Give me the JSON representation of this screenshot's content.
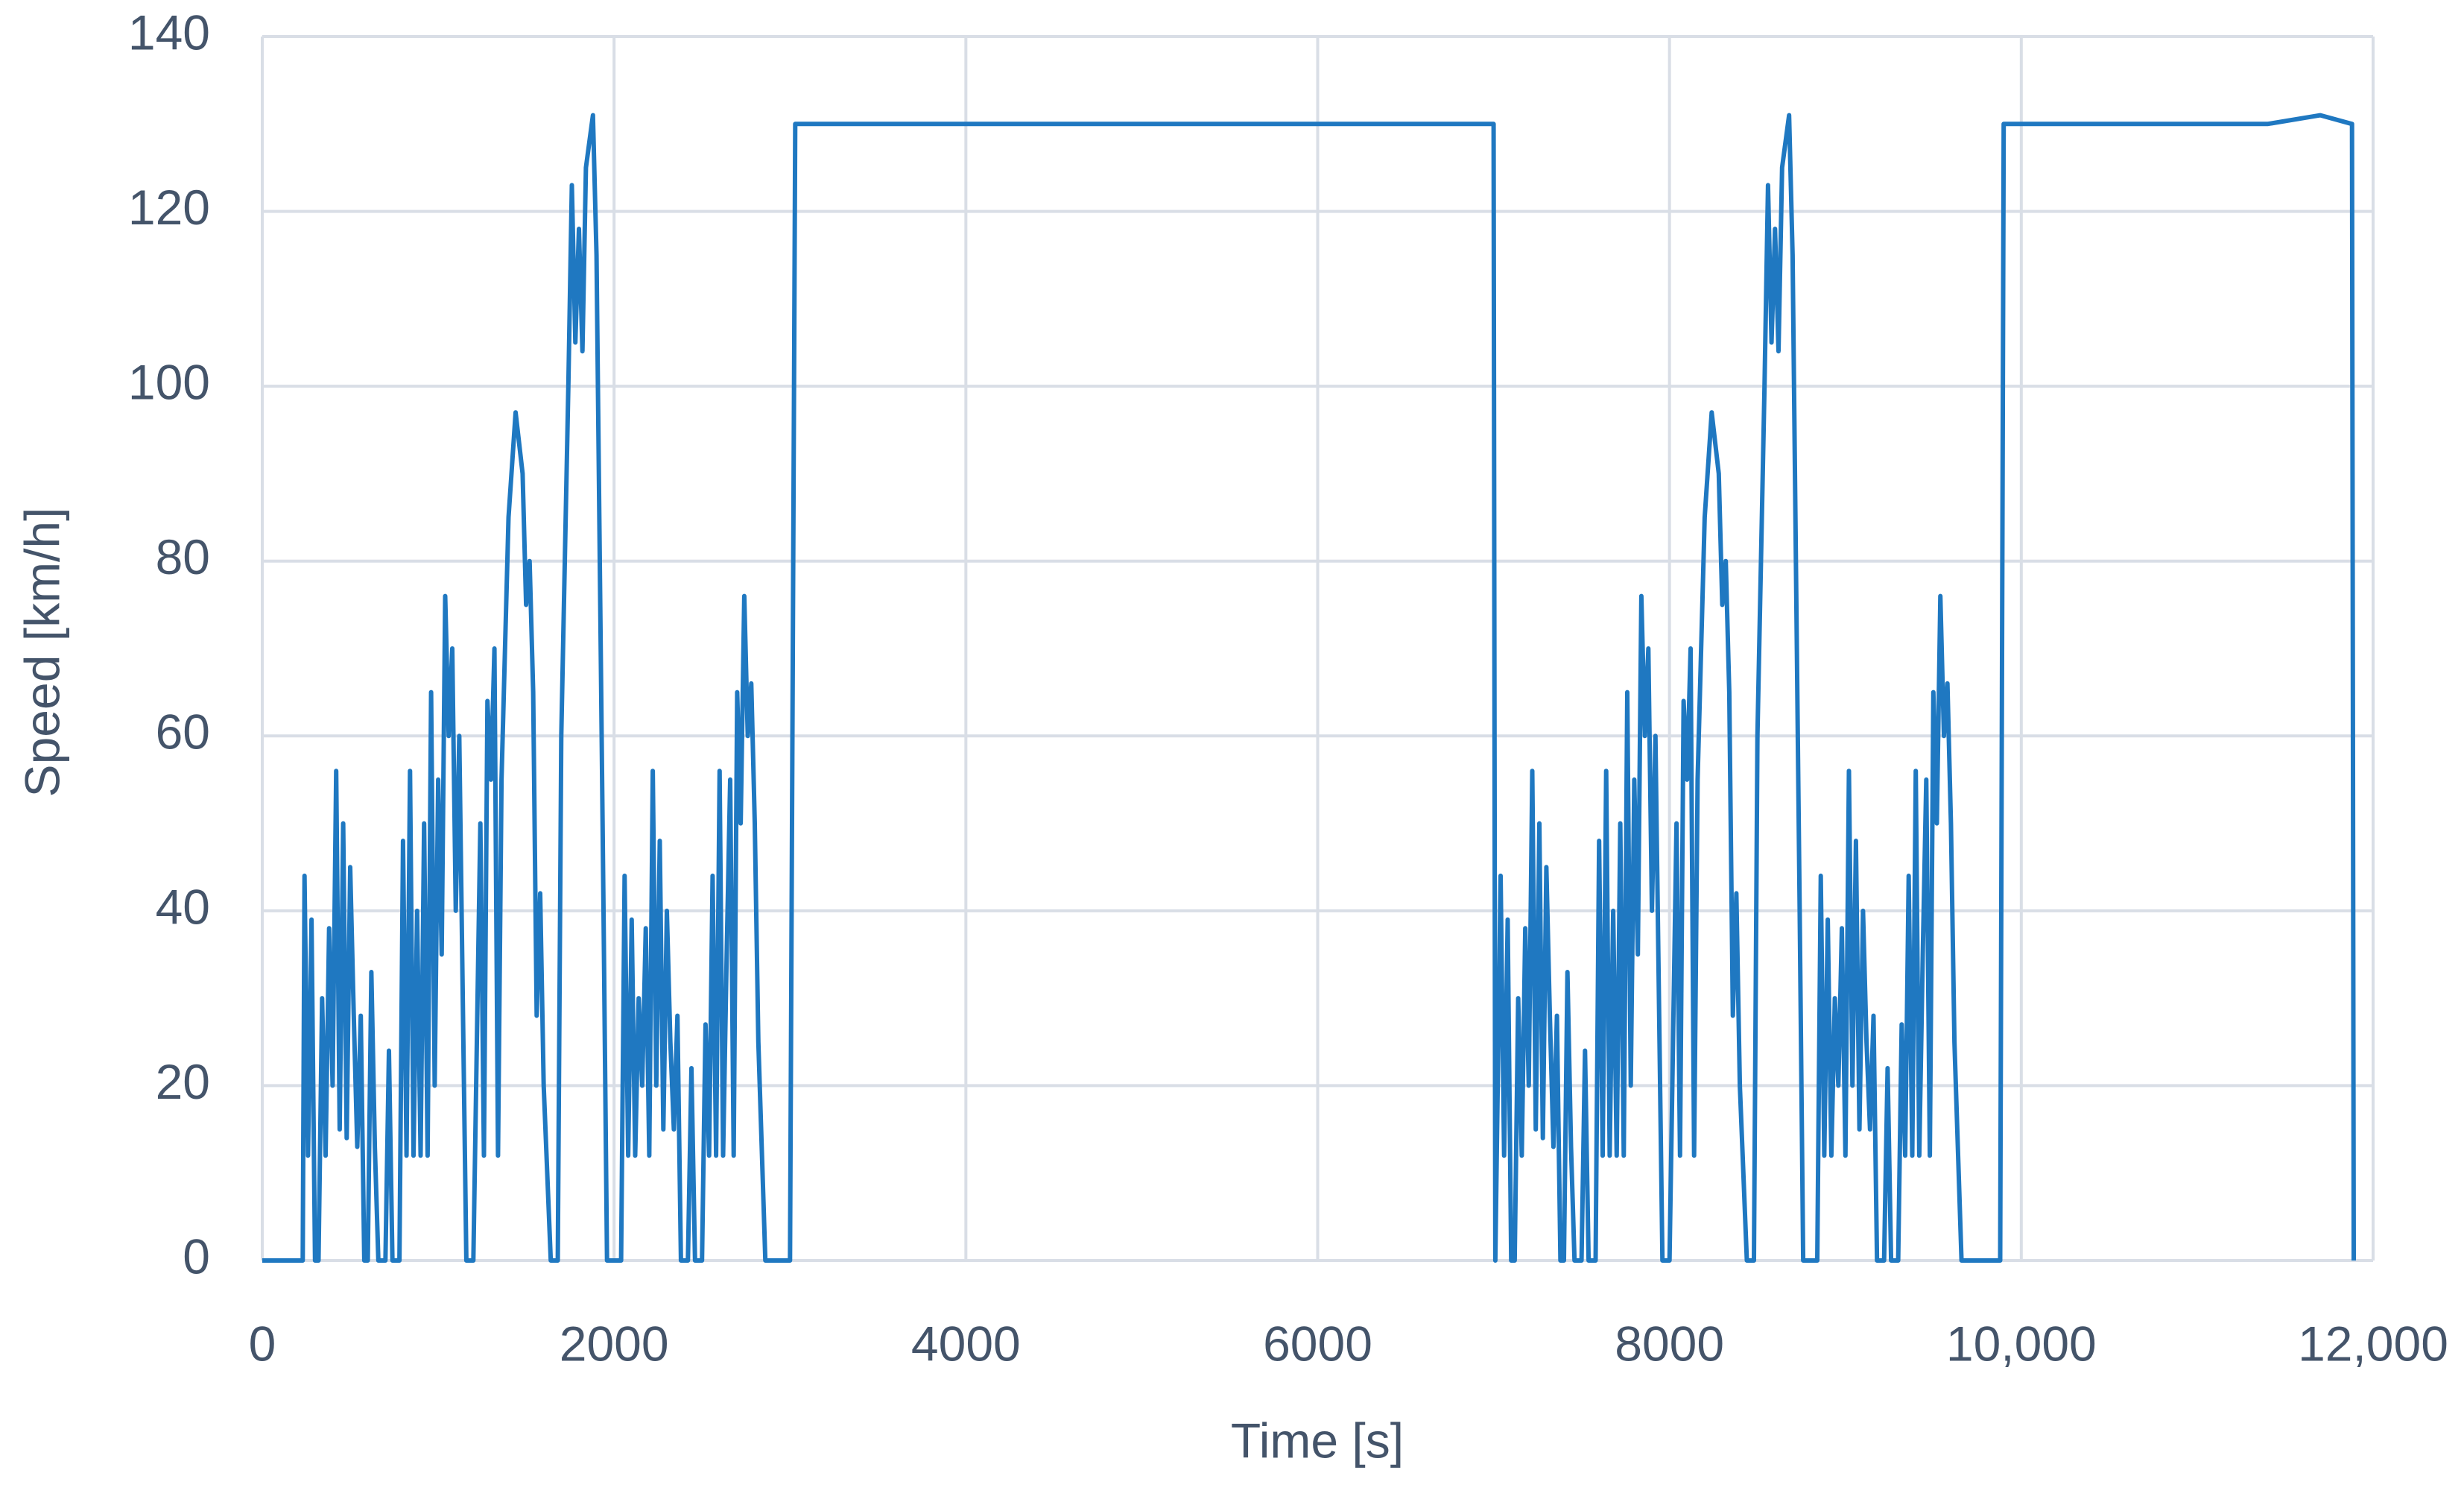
{
  "chart_data": {
    "type": "line",
    "x_label": "Time [s]",
    "y_label": "Speed [km/h]",
    "color": "#1f78c1",
    "grid": true,
    "xlim": [
      0,
      12000
    ],
    "xticks": [
      0,
      2000,
      4000,
      6000,
      8000,
      {
        "value": 10000,
        "label": "10,000"
      },
      {
        "value": 12000,
        "label": "12,000"
      }
    ],
    "ylim": [
      0,
      140
    ],
    "yticks": [
      0,
      20,
      40,
      60,
      80,
      100,
      120,
      140
    ],
    "x": [
      0,
      230,
      240,
      260,
      280,
      300,
      320,
      340,
      360,
      380,
      400,
      420,
      440,
      460,
      480,
      500,
      520,
      540,
      560,
      580,
      600,
      620,
      640,
      660,
      700,
      720,
      740,
      780,
      800,
      820,
      840,
      860,
      880,
      900,
      920,
      940,
      960,
      980,
      1000,
      1020,
      1040,
      1060,
      1080,
      1100,
      1120,
      1140,
      1160,
      1200,
      1240,
      1260,
      1280,
      1300,
      1320,
      1340,
      1360,
      1400,
      1440,
      1480,
      1500,
      1520,
      1540,
      1560,
      1580,
      1600,
      1640,
      1680,
      1700,
      1740,
      1760,
      1780,
      1800,
      1820,
      1840,
      1860,
      1880,
      1900,
      1940,
      1960,
      2040,
      2060,
      2080,
      2100,
      2120,
      2140,
      2160,
      2180,
      2200,
      2220,
      2240,
      2260,
      2280,
      2300,
      2320,
      2340,
      2360,
      2380,
      2420,
      2440,
      2460,
      2500,
      2520,
      2540,
      2560,
      2580,
      2600,
      2620,
      2640,
      2660,
      2680,
      2700,
      2720,
      2740,
      2760,
      2780,
      2800,
      2820,
      2860,
      3000,
      3030,
      3500,
      4000,
      4500,
      5000,
      5500,
      6000,
      6500,
      7000,
      7010,
      7040,
      7060,
      7080,
      7100,
      7120,
      7140,
      7160,
      7180,
      7200,
      7220,
      7240,
      7260,
      7280,
      7300,
      7320,
      7340,
      7360,
      7380,
      7400,
      7420,
      7440,
      7460,
      7500,
      7520,
      7540,
      7580,
      7600,
      7620,
      7640,
      7660,
      7680,
      7700,
      7720,
      7740,
      7760,
      7780,
      7800,
      7820,
      7840,
      7860,
      7880,
      7900,
      7920,
      7940,
      7960,
      8000,
      8040,
      8060,
      8080,
      8100,
      8120,
      8140,
      8160,
      8200,
      8240,
      8280,
      8300,
      8320,
      8340,
      8360,
      8380,
      8400,
      8440,
      8480,
      8500,
      8540,
      8560,
      8580,
      8600,
      8620,
      8640,
      8660,
      8680,
      8700,
      8740,
      8760,
      8840,
      8860,
      8880,
      8900,
      8920,
      8940,
      8960,
      8980,
      9000,
      9020,
      9040,
      9060,
      9080,
      9100,
      9120,
      9140,
      9160,
      9180,
      9220,
      9240,
      9260,
      9300,
      9320,
      9340,
      9360,
      9380,
      9400,
      9420,
      9440,
      9460,
      9480,
      9500,
      9520,
      9540,
      9560,
      9580,
      9600,
      9620,
      9660,
      9880,
      9900,
      10400,
      10900,
      11400,
      11700,
      11880,
      11890
    ],
    "values": [
      0,
      0,
      44,
      12,
      39,
      0,
      0,
      30,
      12,
      38,
      20,
      56,
      15,
      50,
      14,
      45,
      28,
      13,
      28,
      0,
      0,
      33,
      13,
      0,
      0,
      24,
      0,
      0,
      48,
      12,
      56,
      12,
      40,
      12,
      50,
      12,
      65,
      20,
      55,
      35,
      76,
      60,
      70,
      40,
      60,
      30,
      0,
      0,
      50,
      12,
      64,
      55,
      70,
      12,
      55,
      85,
      97,
      90,
      75,
      80,
      65,
      28,
      42,
      20,
      0,
      0,
      60,
      100,
      123,
      105,
      118,
      104,
      125,
      128,
      131,
      115,
      40,
      0,
      0,
      44,
      12,
      39,
      12,
      30,
      20,
      38,
      12,
      56,
      20,
      48,
      15,
      40,
      25,
      15,
      28,
      0,
      0,
      22,
      0,
      0,
      27,
      12,
      44,
      12,
      56,
      12,
      35,
      55,
      12,
      65,
      50,
      76,
      60,
      66,
      50,
      25,
      0,
      0,
      130,
      130,
      130,
      130,
      130,
      130,
      130,
      130,
      130,
      0,
      44,
      12,
      39,
      0,
      0,
      30,
      12,
      38,
      20,
      56,
      15,
      50,
      14,
      45,
      28,
      13,
      28,
      0,
      0,
      33,
      13,
      0,
      0,
      24,
      0,
      0,
      48,
      12,
      56,
      12,
      40,
      12,
      50,
      12,
      65,
      20,
      55,
      35,
      76,
      60,
      70,
      40,
      60,
      30,
      0,
      0,
      50,
      12,
      64,
      55,
      70,
      12,
      55,
      85,
      97,
      90,
      75,
      80,
      65,
      28,
      42,
      20,
      0,
      0,
      60,
      100,
      123,
      105,
      118,
      104,
      125,
      128,
      131,
      115,
      40,
      0,
      0,
      44,
      12,
      39,
      12,
      30,
      20,
      38,
      12,
      56,
      20,
      48,
      15,
      40,
      25,
      15,
      28,
      0,
      0,
      22,
      0,
      0,
      27,
      12,
      44,
      12,
      56,
      12,
      35,
      55,
      12,
      65,
      50,
      76,
      60,
      66,
      50,
      25,
      0,
      0,
      130,
      130,
      130,
      130,
      131,
      130,
      0
    ]
  }
}
